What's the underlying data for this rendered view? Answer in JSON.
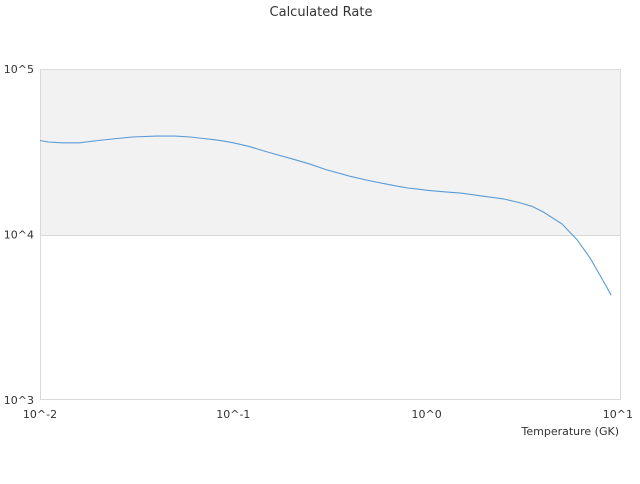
{
  "chart_data": {
    "type": "line",
    "title": "Calculated Rate",
    "xlabel": "Temperature (GK)",
    "ylabel": "",
    "xscale": "log",
    "yscale": "log",
    "xlim": [
      0.01,
      10
    ],
    "ylim": [
      1000,
      100000
    ],
    "x_ticks": [
      {
        "value": 0.01,
        "label": "10^-2"
      },
      {
        "value": 0.1,
        "label": "10^-1"
      },
      {
        "value": 1,
        "label": "10^0"
      },
      {
        "value": 10,
        "label": "10^1"
      }
    ],
    "y_ticks": [
      {
        "value": 1000,
        "label": "10^3"
      },
      {
        "value": 10000,
        "label": "10^4"
      },
      {
        "value": 100000,
        "label": "10^5"
      }
    ],
    "grid": true,
    "legend": "none",
    "colors": {
      "series": "#5b9bd5",
      "band": "#f2f2f2",
      "grid": "#d9d9d9"
    },
    "series": [
      {
        "x": [
          0.01,
          0.011,
          0.013,
          0.016,
          0.02,
          0.025,
          0.03,
          0.04,
          0.05,
          0.06,
          0.07,
          0.08,
          0.09,
          0.1,
          0.12,
          0.15,
          0.2,
          0.25,
          0.3,
          0.4,
          0.5,
          0.6,
          0.7,
          0.8,
          0.9,
          1.0,
          1.25,
          1.5,
          2.0,
          2.5,
          3.0,
          3.5,
          4.0,
          5.0,
          6.0,
          7.0,
          8.0,
          9.0
        ],
        "y": [
          37000,
          36200,
          35800,
          35800,
          37000,
          38000,
          38800,
          39300,
          39300,
          38800,
          38000,
          37400,
          36600,
          35800,
          34100,
          31500,
          28700,
          26600,
          24700,
          22500,
          21200,
          20300,
          19600,
          19100,
          18800,
          18500,
          18100,
          17800,
          17000,
          16400,
          15600,
          14800,
          13700,
          11600,
          9300,
          7200,
          5500,
          4300
        ]
      }
    ]
  }
}
